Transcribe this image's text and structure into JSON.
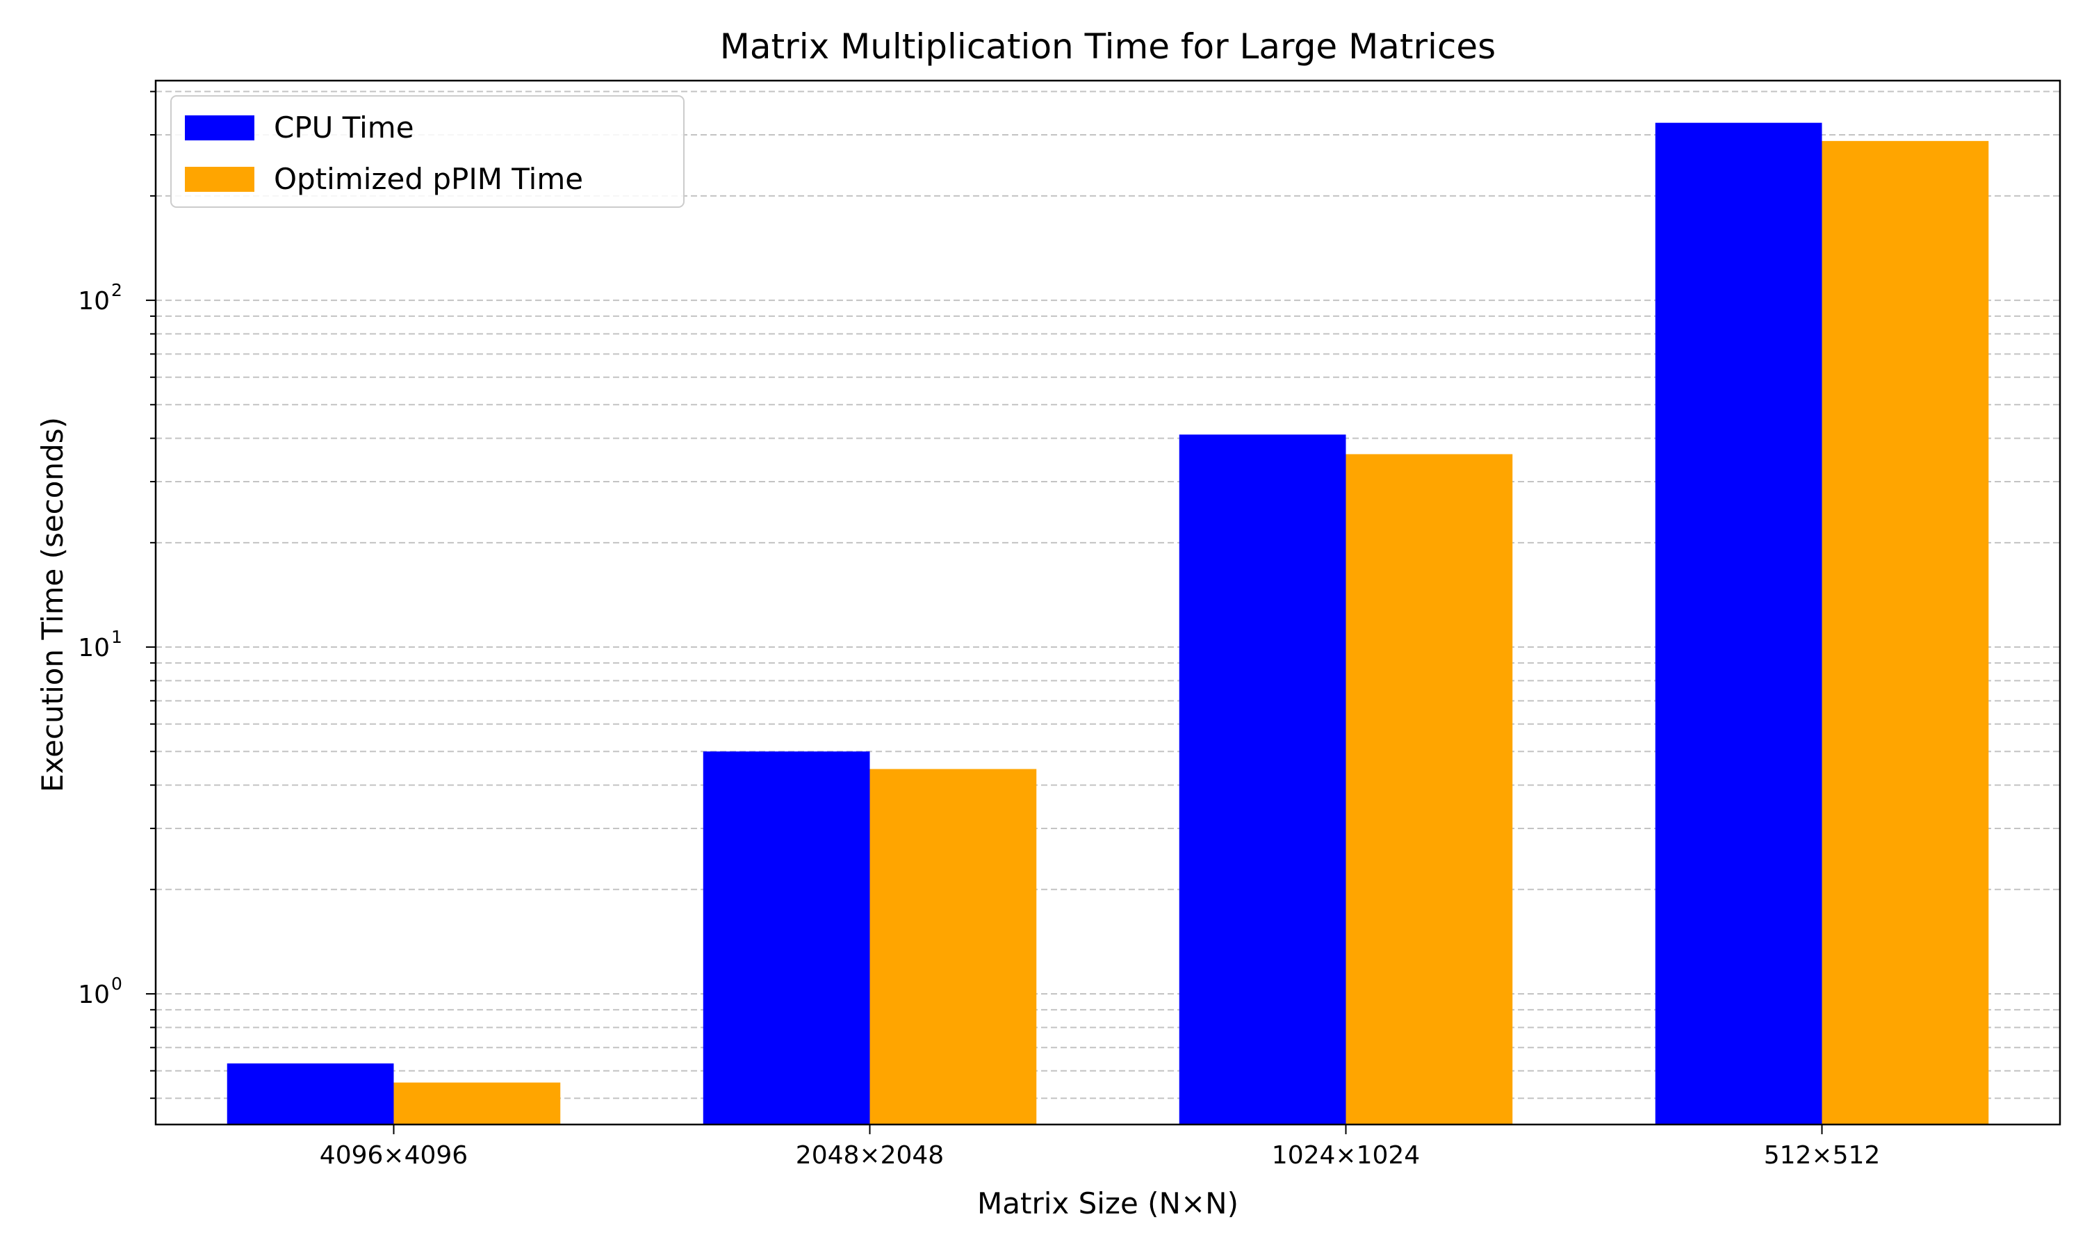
{
  "chart_data": {
    "type": "bar",
    "title": "Matrix Multiplication Time for Large Matrices",
    "xlabel": "Matrix Size (N×N)",
    "ylabel": "Execution Time (seconds)",
    "yscale": "log",
    "ylim": [
      0.42,
      430
    ],
    "grid": "y-major-and-minor-dashed",
    "legend_position": "top-left",
    "categories": [
      "4096×4096",
      "2048×2048",
      "1024×1024",
      "512×512"
    ],
    "series": [
      {
        "name": "CPU Time",
        "color": "#0000ff",
        "values": [
          0.63,
          5.0,
          41.0,
          325.0
        ]
      },
      {
        "name": "Optimized pPIM Time",
        "color": "#ffa500",
        "values": [
          0.555,
          4.45,
          36.0,
          288.0
        ]
      }
    ],
    "y_tick_labels": [
      {
        "value": 1,
        "base": "10",
        "exp": "0"
      },
      {
        "value": 10,
        "base": "10",
        "exp": "1"
      },
      {
        "value": 100,
        "base": "10",
        "exp": "2"
      }
    ]
  }
}
